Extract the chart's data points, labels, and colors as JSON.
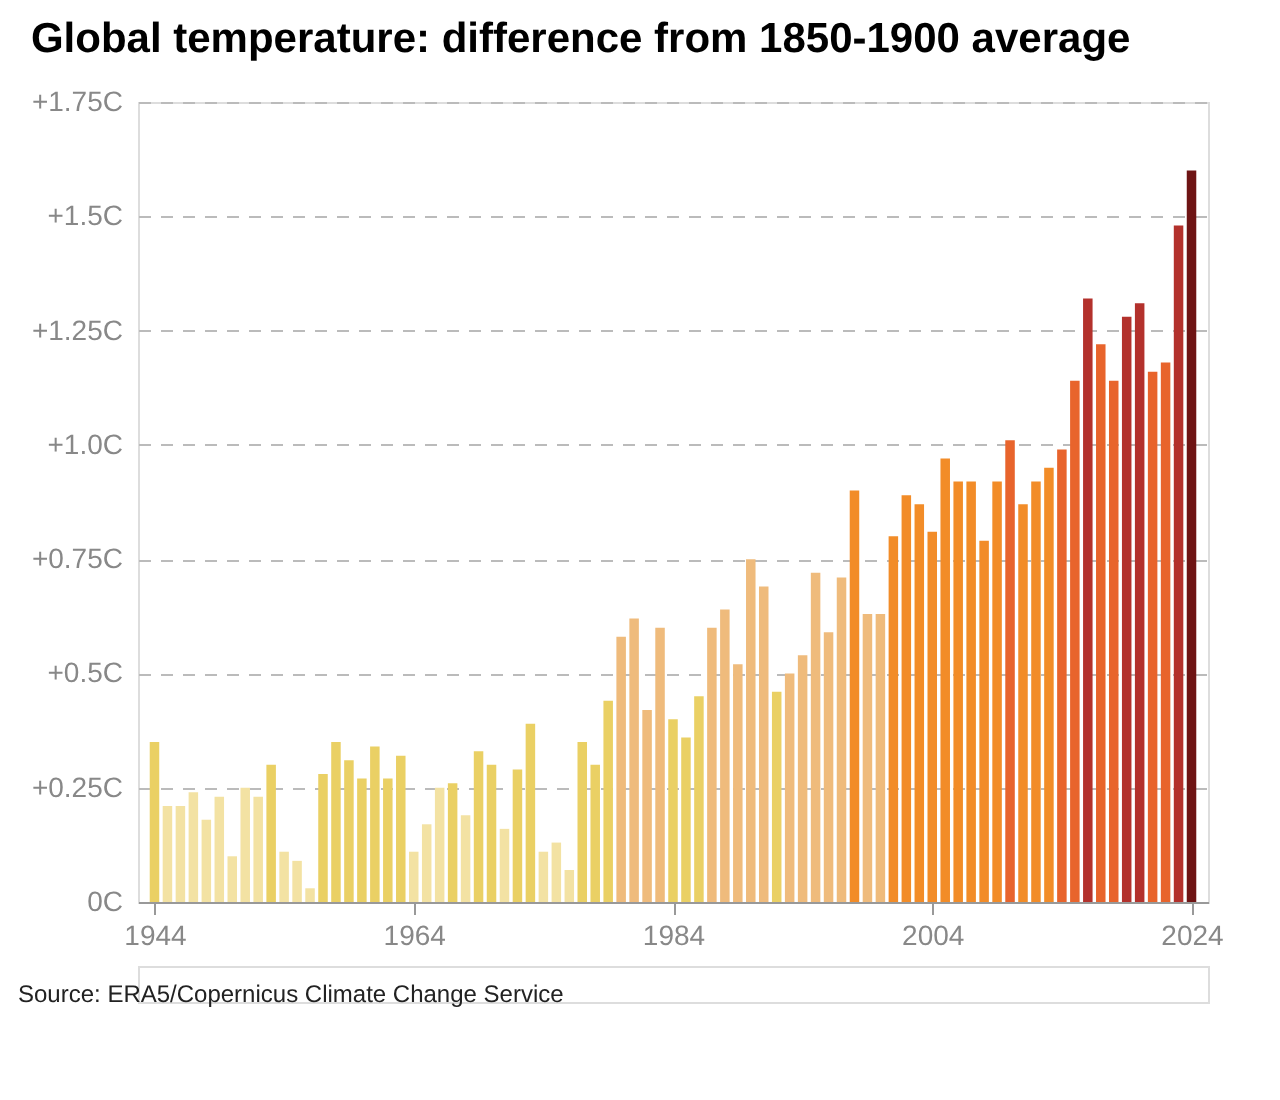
{
  "chart_data": {
    "type": "bar",
    "title": "Global temperature: difference from 1850-1900 average",
    "annotations": [
      "Source: ERA5/Copernicus Climate Change Service"
    ],
    "x": [
      1944,
      1945,
      1946,
      1947,
      1948,
      1949,
      1950,
      1951,
      1952,
      1953,
      1954,
      1955,
      1956,
      1957,
      1958,
      1959,
      1960,
      1961,
      1962,
      1963,
      1964,
      1965,
      1966,
      1967,
      1968,
      1969,
      1970,
      1971,
      1972,
      1973,
      1974,
      1975,
      1976,
      1977,
      1978,
      1979,
      1980,
      1981,
      1982,
      1983,
      1984,
      1985,
      1986,
      1987,
      1988,
      1989,
      1990,
      1991,
      1992,
      1993,
      1994,
      1995,
      1996,
      1997,
      1998,
      1999,
      2000,
      2001,
      2002,
      2003,
      2004,
      2005,
      2006,
      2007,
      2008,
      2009,
      2010,
      2011,
      2012,
      2013,
      2014,
      2015,
      2016,
      2017,
      2018,
      2019,
      2020,
      2021,
      2022,
      2023,
      2024
    ],
    "values": [
      0.35,
      0.21,
      0.21,
      0.24,
      0.18,
      0.23,
      0.1,
      0.25,
      0.23,
      0.3,
      0.11,
      0.09,
      0.03,
      0.28,
      0.35,
      0.31,
      0.27,
      0.34,
      0.27,
      0.32,
      0.11,
      0.17,
      0.25,
      0.26,
      0.19,
      0.33,
      0.3,
      0.16,
      0.29,
      0.39,
      0.11,
      0.13,
      0.07,
      0.35,
      0.3,
      0.44,
      0.58,
      0.62,
      0.42,
      0.6,
      0.4,
      0.36,
      0.45,
      0.6,
      0.64,
      0.52,
      0.75,
      0.69,
      0.46,
      0.5,
      0.54,
      0.72,
      0.59,
      0.71,
      0.9,
      0.63,
      0.63,
      0.8,
      0.89,
      0.87,
      0.81,
      0.97,
      0.92,
      0.92,
      0.79,
      0.92,
      1.01,
      0.87,
      0.92,
      0.95,
      0.99,
      1.14,
      1.32,
      1.22,
      1.14,
      1.28,
      1.31,
      1.16,
      1.18,
      1.48,
      1.6
    ],
    "colors": [
      "#ead064",
      "#f3e2a3",
      "#f3e2a3",
      "#f3e2a3",
      "#f3e2a3",
      "#f3e2a3",
      "#f3e2a3",
      "#f3e2a3",
      "#f3e2a3",
      "#ead064",
      "#f3e2a3",
      "#f3e2a3",
      "#f3e2a3",
      "#ead064",
      "#ead064",
      "#ead064",
      "#ead064",
      "#ead064",
      "#ead064",
      "#ead064",
      "#f3e2a3",
      "#f3e2a3",
      "#f3e2a3",
      "#ead064",
      "#f3e2a3",
      "#ead064",
      "#ead064",
      "#f3e2a3",
      "#ead064",
      "#ead064",
      "#f3e2a3",
      "#f3e2a3",
      "#f3e2a3",
      "#ead064",
      "#ead064",
      "#ead064",
      "#efbb7c",
      "#efbb7c",
      "#efbb7c",
      "#efbb7c",
      "#ead064",
      "#ead064",
      "#ead064",
      "#efbb7c",
      "#efbb7c",
      "#efbb7c",
      "#efbb7c",
      "#efbb7c",
      "#ead064",
      "#efbb7c",
      "#efbb7c",
      "#efbb7c",
      "#efbb7c",
      "#efbb7c",
      "#f28c28",
      "#efbb7c",
      "#efbb7c",
      "#f28c28",
      "#f28c28",
      "#f28c28",
      "#f28c28",
      "#f28c28",
      "#f28c28",
      "#f28c28",
      "#f28c28",
      "#f28c28",
      "#e8642c",
      "#f28c28",
      "#f28c28",
      "#f28c28",
      "#e8642c",
      "#e8642c",
      "#b3312c",
      "#e8642c",
      "#e8642c",
      "#b3312c",
      "#b3312c",
      "#e8642c",
      "#e8642c",
      "#b3312c",
      "#6e1414"
    ],
    "xlim": [
      1943.5,
      2024.5
    ],
    "xticks": [
      1944,
      1964,
      1984,
      2004,
      2024
    ],
    "ylim": [
      0,
      1.75
    ],
    "yticks": [
      {
        "value": 0,
        "label": "0C"
      },
      {
        "value": 0.25,
        "label": "+0.25C"
      },
      {
        "value": 0.5,
        "label": "+0.5C"
      },
      {
        "value": 0.75,
        "label": "+0.75C"
      },
      {
        "value": 1.0,
        "label": "+1.0C"
      },
      {
        "value": 1.25,
        "label": "+1.25C"
      },
      {
        "value": 1.5,
        "label": "+1.5C"
      },
      {
        "value": 1.75,
        "label": "+1.75C"
      }
    ],
    "grid": "y"
  }
}
